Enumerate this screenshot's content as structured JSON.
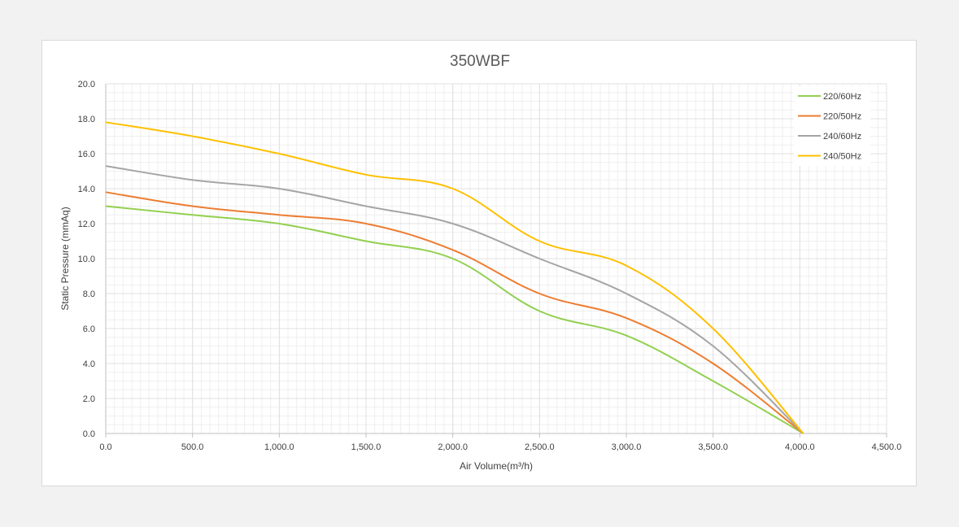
{
  "chart_data": {
    "type": "line",
    "title": "350WBF",
    "xlabel": "Air Volume(m³/h)",
    "ylabel": "Static Pressure (mmAq)",
    "xlim": [
      0,
      4500
    ],
    "ylim": [
      0,
      20
    ],
    "x_ticks": [
      "0.0",
      "500.0",
      "1,000.0",
      "1,500.0",
      "2,000.0",
      "2,500.0",
      "3,000.0",
      "3,500.0",
      "4,000.0",
      "4,500.0"
    ],
    "y_ticks": [
      "0.0",
      "2.0",
      "4.0",
      "6.0",
      "8.0",
      "10.0",
      "12.0",
      "14.0",
      "16.0",
      "18.0",
      "20.0"
    ],
    "x_tick_values": [
      0,
      500,
      1000,
      1500,
      2000,
      2500,
      3000,
      3500,
      4000,
      4500
    ],
    "y_tick_values": [
      0,
      2,
      4,
      6,
      8,
      10,
      12,
      14,
      16,
      18,
      20
    ],
    "grid": true,
    "legend_position": "top-right",
    "series": [
      {
        "name": "220/60Hz",
        "color": "#92d050",
        "x": [
          0,
          500,
          1000,
          1500,
          2000,
          2500,
          3000,
          3500,
          4020
        ],
        "y": [
          13.0,
          12.5,
          12.0,
          11.0,
          10.0,
          7.0,
          5.6,
          3.0,
          0.0
        ]
      },
      {
        "name": "220/50Hz",
        "color": "#ed7d31",
        "x": [
          0,
          500,
          1000,
          1500,
          2000,
          2500,
          3000,
          3500,
          4020
        ],
        "y": [
          13.8,
          13.0,
          12.5,
          12.0,
          10.5,
          8.0,
          6.6,
          4.0,
          0.0
        ]
      },
      {
        "name": "240/60Hz",
        "color": "#a5a5a5",
        "x": [
          0,
          500,
          1000,
          1500,
          2000,
          2500,
          3000,
          3500,
          4020
        ],
        "y": [
          15.3,
          14.5,
          14.0,
          13.0,
          12.0,
          10.0,
          8.0,
          5.0,
          0.0
        ]
      },
      {
        "name": "240/50Hz",
        "color": "#ffc000",
        "x": [
          0,
          500,
          1000,
          1500,
          2000,
          2500,
          3000,
          3500,
          4020
        ],
        "y": [
          17.8,
          17.0,
          16.0,
          14.8,
          14.0,
          11.0,
          9.6,
          6.0,
          0.0
        ]
      }
    ]
  }
}
